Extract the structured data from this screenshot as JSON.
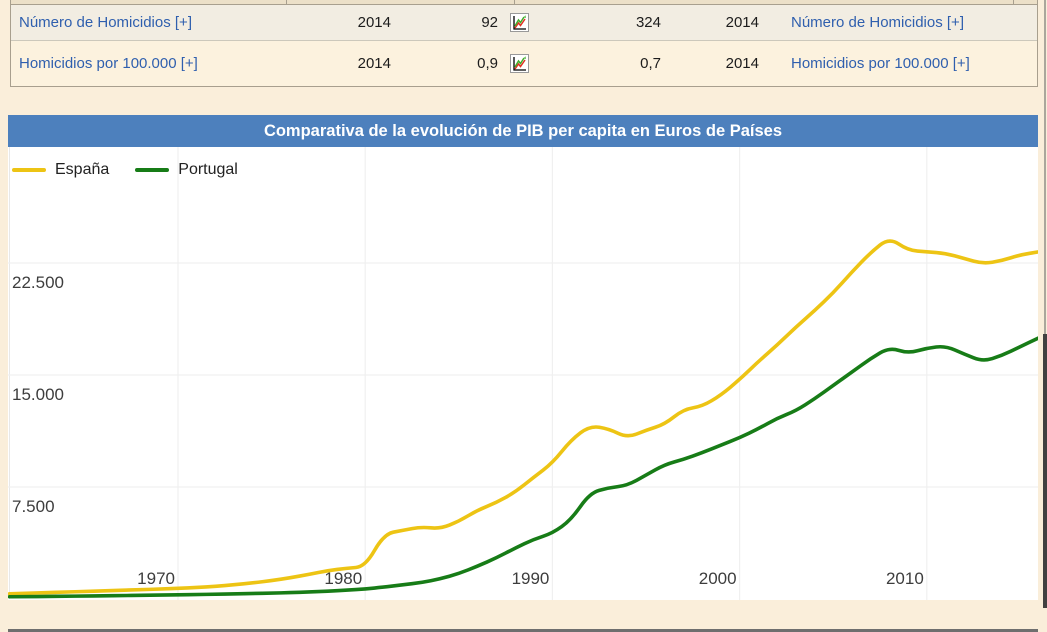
{
  "table": {
    "rows": [
      {
        "left_label": "Número de Homicidios [+]",
        "year_left": "2014",
        "value_left": "92",
        "icon": "line-chart-icon",
        "value_right": "324",
        "year_right": "2014",
        "right_label": "Número de Homicidios [+]"
      },
      {
        "left_label": "Homicidios por 100.000 [+]",
        "year_left": "2014",
        "value_left": "0,9",
        "icon": "line-chart-icon",
        "value_right": "0,7",
        "year_right": "2014",
        "right_label": "Homicidios por 100.000 [+]"
      }
    ]
  },
  "chart": {
    "title": "Comparativa de la evolución de PIB per capita en Euros de Países"
  },
  "chart_data": {
    "type": "line",
    "title": "Comparativa de la evolución de PIB per capita en Euros de Países",
    "x": [
      1961,
      1962,
      1963,
      1964,
      1965,
      1966,
      1967,
      1968,
      1969,
      1970,
      1971,
      1972,
      1973,
      1974,
      1975,
      1976,
      1977,
      1978,
      1979,
      1980,
      1981,
      1982,
      1983,
      1984,
      1985,
      1986,
      1987,
      1988,
      1989,
      1990,
      1991,
      1992,
      1993,
      1994,
      1995,
      1996,
      1997,
      1998,
      1999,
      2000,
      2001,
      2002,
      2003,
      2004,
      2005,
      2006,
      2007,
      2008,
      2009,
      2010,
      2011,
      2012,
      2013,
      2014,
      2015,
      2016
    ],
    "series": [
      {
        "name": "España",
        "color": "#edc414",
        "values": [
          350,
          385,
          425,
          465,
          505,
          545,
          585,
          625,
          665,
          710,
          770,
          850,
          950,
          1080,
          1230,
          1420,
          1650,
          1900,
          2060,
          2160,
          4350,
          4600,
          4830,
          4700,
          5200,
          5950,
          6450,
          7150,
          8150,
          9100,
          10650,
          11600,
          11400,
          10800,
          11300,
          11700,
          12700,
          12900,
          13650,
          14700,
          15900,
          17000,
          18200,
          19300,
          20500,
          21900,
          23200,
          24200,
          23350,
          23250,
          23150,
          22800,
          22450,
          22650,
          23050,
          23250
        ]
      },
      {
        "name": "Portugal",
        "color": "#177c17",
        "values": [
          150,
          160,
          170,
          185,
          200,
          215,
          230,
          245,
          260,
          280,
          300,
          320,
          345,
          370,
          395,
          425,
          470,
          520,
          590,
          670,
          800,
          950,
          1100,
          1350,
          1700,
          2200,
          2750,
          3400,
          4000,
          4400,
          5300,
          7100,
          7450,
          7600,
          8300,
          9000,
          9350,
          9800,
          10300,
          10800,
          11400,
          12100,
          12600,
          13400,
          14300,
          15200,
          16100,
          16850,
          16450,
          16800,
          16950,
          16400,
          15900,
          16300,
          16900,
          17500
        ]
      }
    ],
    "xticks": [
      {
        "value": 1970,
        "label": "1970"
      },
      {
        "value": 1980,
        "label": "1980"
      },
      {
        "value": 1990,
        "label": "1990"
      },
      {
        "value": 2000,
        "label": "2000"
      },
      {
        "value": 2010,
        "label": "2010"
      }
    ],
    "yticks": [
      {
        "value": 7500,
        "label": "7.500"
      },
      {
        "value": 15000,
        "label": "15.000"
      },
      {
        "value": 22500,
        "label": "22.500"
      }
    ],
    "xlim": [
      1961,
      2016
    ],
    "ylim": [
      0,
      30300
    ],
    "grid": true,
    "legend_position": "top-left"
  },
  "colors": {
    "title_bar": "#4d80bd",
    "espana_line": "#edc414",
    "portugal_line": "#177c17",
    "link_blue": "#2f5fae",
    "page_background": "#faeeda"
  }
}
